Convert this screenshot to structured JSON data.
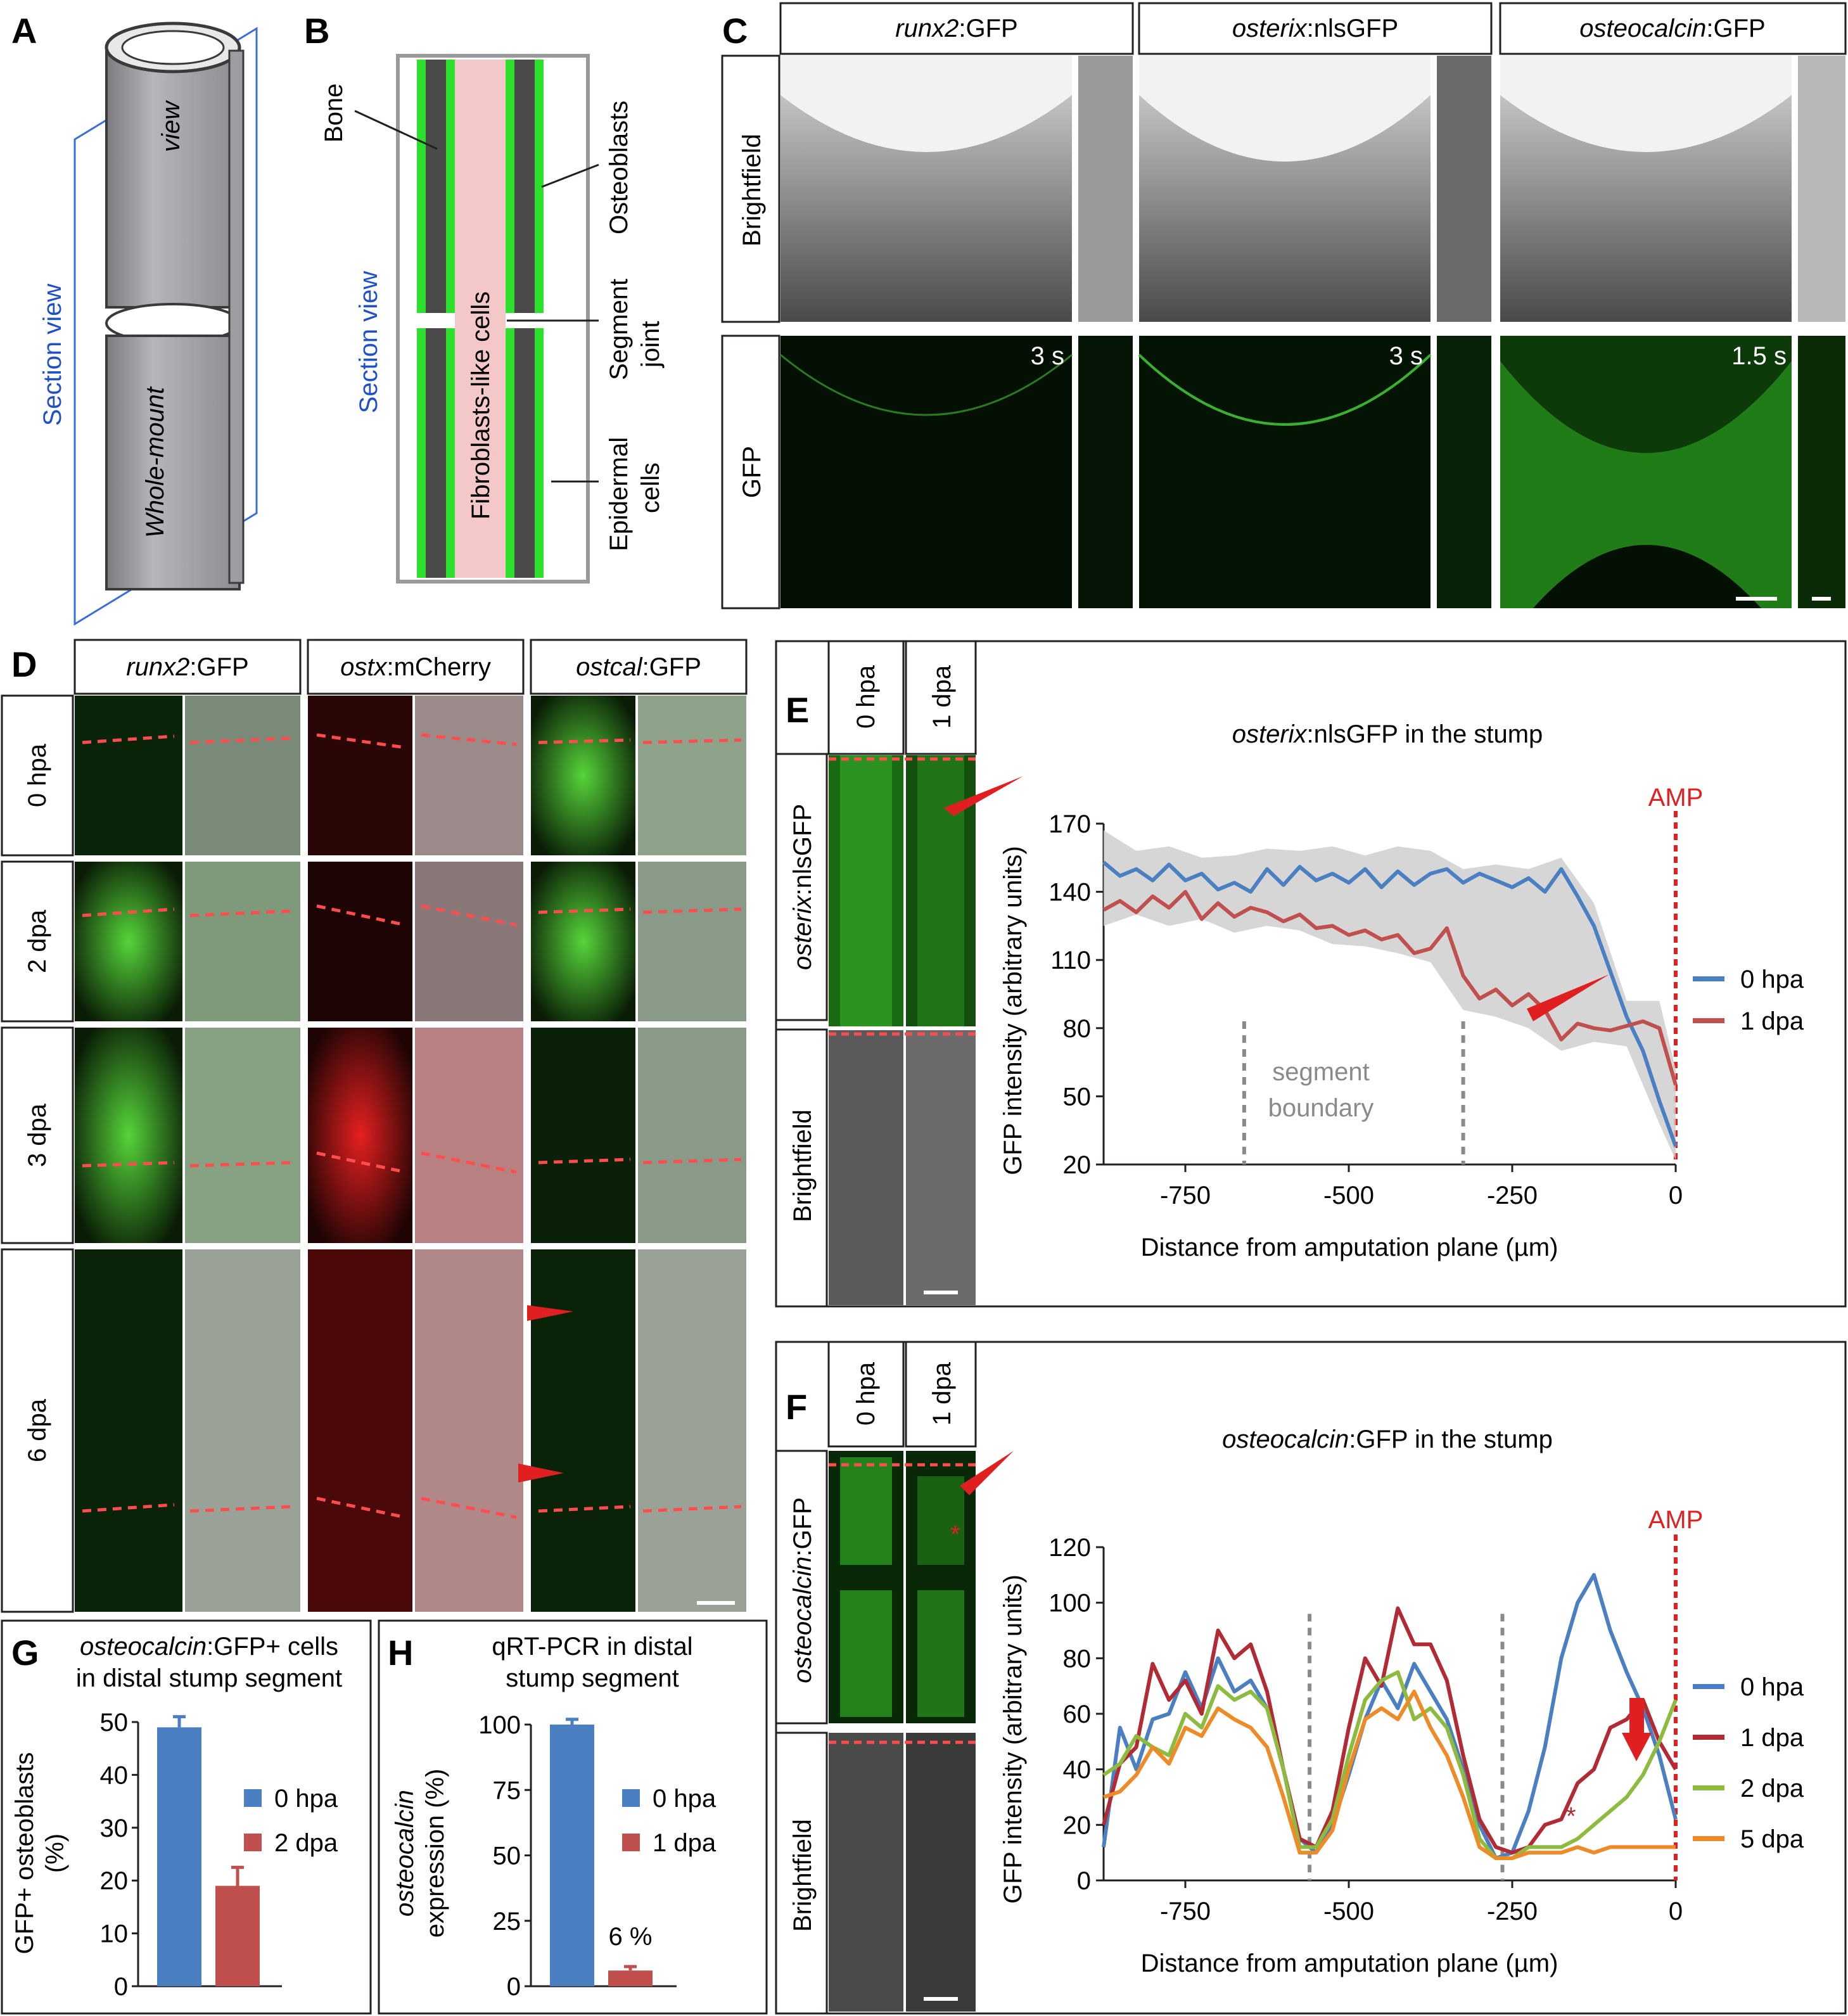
{
  "panels": {
    "A": {
      "label": "A",
      "annotations": {
        "section": "Section view",
        "view": "view",
        "whole": "Whole-mount"
      }
    },
    "B": {
      "label": "B",
      "annotations": {
        "bone": "Bone",
        "osteoblasts": "Osteoblasts",
        "section": "Section view",
        "fibro": "Fibroblasts-like cells",
        "segment1": "Segment",
        "segment2": "joint",
        "epidermal1": "Epidermal",
        "epidermal2": "cells"
      }
    },
    "C": {
      "label": "C",
      "headers": [
        {
          "gene": "runx2",
          "suffix": ":GFP"
        },
        {
          "gene": "osterix",
          "suffix": ":nlsGFP"
        },
        {
          "gene": "osteocalcin",
          "suffix": ":GFP"
        }
      ],
      "rows": [
        "Brightfield",
        "GFP"
      ],
      "exposures": [
        "3 s",
        "3 s",
        "1.5 s"
      ]
    },
    "D": {
      "label": "D",
      "headers": [
        {
          "gene": "runx2",
          "suffix": ":GFP"
        },
        {
          "gene": "ostx",
          "suffix": ":mCherry"
        },
        {
          "gene": "ostcal",
          "suffix": ":GFP"
        }
      ],
      "rows": [
        "0 hpa",
        "2 dpa",
        "3 dpa",
        "6 dpa"
      ]
    },
    "E": {
      "label": "E",
      "col_headers": [
        "0 hpa",
        "1 dpa"
      ],
      "row_labels": [
        "osterix:nlsGFP",
        "Brightfield"
      ],
      "row_gene": "osterix",
      "row_suffix": ":nlsGFP"
    },
    "F": {
      "label": "F",
      "col_headers": [
        "0 hpa",
        "1 dpa"
      ],
      "row_labels": [
        "osteocalcin:GFP",
        "Brightfield"
      ],
      "row_gene": "osteocalcin",
      "row_suffix": ":GFP",
      "asterisk": "*"
    },
    "G": {
      "label": "G"
    },
    "H": {
      "label": "H"
    }
  },
  "chart_data": [
    {
      "id": "E",
      "type": "line",
      "title_gene": "osterix",
      "title_rest": ":nlsGFP in the stump",
      "xlabel": "Distance from amputation plane (µm)",
      "ylabel": "GFP intensity (arbitrary units)",
      "xlim": [
        -875,
        0
      ],
      "ylim": [
        20,
        170
      ],
      "xticks": [
        -750,
        -500,
        -250,
        0
      ],
      "xtick_labels": [
        "-750",
        "-500",
        "-250",
        "0"
      ],
      "yticks": [
        20,
        50,
        80,
        110,
        140,
        170
      ],
      "amp_label": "AMP",
      "boundary_label": [
        "segment",
        "boundary"
      ],
      "boundaries": [
        -660,
        -325
      ],
      "series": [
        {
          "name": "0 hpa",
          "color": "#4a7fc1",
          "x": [
            -875,
            -850,
            -825,
            -800,
            -775,
            -750,
            -725,
            -700,
            -675,
            -650,
            -625,
            -600,
            -575,
            -550,
            -525,
            -500,
            -475,
            -450,
            -425,
            -400,
            -375,
            -350,
            -325,
            -300,
            -275,
            -250,
            -225,
            -200,
            -175,
            -150,
            -125,
            -100,
            -75,
            -50,
            -25,
            0
          ],
          "y": [
            153,
            147,
            150,
            145,
            152,
            145,
            148,
            141,
            144,
            140,
            150,
            143,
            151,
            145,
            148,
            144,
            150,
            142,
            149,
            143,
            148,
            150,
            144,
            148,
            145,
            142,
            146,
            140,
            150,
            138,
            125,
            105,
            85,
            70,
            48,
            28
          ]
        },
        {
          "name": "1 dpa",
          "color": "#c0504d",
          "x": [
            -875,
            -850,
            -825,
            -800,
            -775,
            -750,
            -725,
            -700,
            -675,
            -650,
            -625,
            -600,
            -575,
            -550,
            -525,
            -500,
            -475,
            -450,
            -425,
            -400,
            -375,
            -350,
            -325,
            -300,
            -275,
            -250,
            -225,
            -200,
            -175,
            -150,
            -125,
            -100,
            -75,
            -50,
            -25,
            0
          ],
          "y": [
            132,
            136,
            131,
            138,
            133,
            140,
            128,
            135,
            129,
            133,
            131,
            127,
            130,
            124,
            125,
            121,
            123,
            119,
            121,
            113,
            115,
            124,
            103,
            93,
            97,
            90,
            95,
            88,
            75,
            82,
            80,
            79,
            81,
            83,
            80,
            55
          ]
        }
      ],
      "band": {
        "x": [
          -875,
          -825,
          -775,
          -725,
          -675,
          -625,
          -575,
          -525,
          -475,
          -425,
          -375,
          -325,
          -275,
          -225,
          -175,
          -125,
          -75,
          -25,
          0
        ],
        "lo": [
          125,
          130,
          125,
          128,
          122,
          125,
          123,
          117,
          116,
          113,
          109,
          88,
          85,
          80,
          70,
          74,
          72,
          38,
          22
        ],
        "hi": [
          167,
          158,
          160,
          155,
          156,
          159,
          158,
          160,
          156,
          160,
          158,
          150,
          152,
          150,
          155,
          135,
          92,
          92,
          62
        ]
      },
      "legend": [
        "0 hpa",
        "1 dpa"
      ]
    },
    {
      "id": "F",
      "type": "line",
      "title_gene": "osteocalcin",
      "title_rest": ":GFP in the stump",
      "xlabel": "Distance from amputation plane (µm)",
      "ylabel": "GFP intensity (arbitrary units)",
      "xlim": [
        -875,
        0
      ],
      "ylim": [
        0,
        120
      ],
      "xticks": [
        -750,
        -500,
        -250,
        0
      ],
      "xtick_labels": [
        "-750",
        "-500",
        "-250",
        "0"
      ],
      "yticks": [
        0,
        20,
        40,
        60,
        80,
        100,
        120
      ],
      "amp_label": "AMP",
      "boundaries": [
        -560,
        -265
      ],
      "series": [
        {
          "name": "0 hpa",
          "color": "#4a7fc1",
          "x": [
            -875,
            -850,
            -825,
            -800,
            -775,
            -750,
            -725,
            -700,
            -675,
            -650,
            -625,
            -600,
            -575,
            -550,
            -525,
            -500,
            -475,
            -450,
            -425,
            -400,
            -375,
            -350,
            -325,
            -300,
            -275,
            -250,
            -225,
            -200,
            -175,
            -150,
            -125,
            -100,
            -75,
            -50,
            -25,
            0
          ],
          "y": [
            12,
            55,
            40,
            58,
            60,
            75,
            62,
            80,
            68,
            72,
            62,
            40,
            15,
            10,
            20,
            38,
            58,
            72,
            62,
            78,
            68,
            58,
            40,
            20,
            8,
            10,
            25,
            48,
            80,
            100,
            110,
            90,
            75,
            62,
            45,
            22
          ]
        },
        {
          "name": "1 dpa",
          "color": "#b22a33",
          "x": [
            -875,
            -850,
            -825,
            -800,
            -775,
            -750,
            -725,
            -700,
            -675,
            -650,
            -625,
            -600,
            -575,
            -550,
            -525,
            -500,
            -475,
            -450,
            -425,
            -400,
            -375,
            -350,
            -325,
            -300,
            -275,
            -250,
            -225,
            -200,
            -175,
            -150,
            -125,
            -100,
            -75,
            -50,
            -25,
            0
          ],
          "y": [
            20,
            42,
            48,
            78,
            65,
            72,
            60,
            90,
            80,
            85,
            68,
            40,
            15,
            12,
            25,
            55,
            80,
            70,
            98,
            85,
            85,
            72,
            45,
            22,
            12,
            10,
            12,
            20,
            22,
            35,
            40,
            55,
            58,
            65,
            50,
            40
          ]
        },
        {
          "name": "2 dpa",
          "color": "#8dbb3f",
          "x": [
            -875,
            -850,
            -825,
            -800,
            -775,
            -750,
            -725,
            -700,
            -675,
            -650,
            -625,
            -600,
            -575,
            -550,
            -525,
            -500,
            -475,
            -450,
            -425,
            -400,
            -375,
            -350,
            -325,
            -300,
            -275,
            -250,
            -225,
            -200,
            -175,
            -150,
            -125,
            -100,
            -75,
            -50,
            -25,
            0
          ],
          "y": [
            38,
            42,
            52,
            48,
            45,
            60,
            55,
            70,
            65,
            68,
            62,
            40,
            12,
            12,
            22,
            45,
            65,
            72,
            75,
            58,
            62,
            55,
            38,
            15,
            8,
            8,
            12,
            12,
            12,
            15,
            20,
            25,
            30,
            38,
            50,
            65
          ]
        },
        {
          "name": "5 dpa",
          "color": "#ee8b26",
          "x": [
            -875,
            -850,
            -825,
            -800,
            -775,
            -750,
            -725,
            -700,
            -675,
            -650,
            -625,
            -600,
            -575,
            -550,
            -525,
            -500,
            -475,
            -450,
            -425,
            -400,
            -375,
            -350,
            -325,
            -300,
            -275,
            -250,
            -225,
            -200,
            -175,
            -150,
            -125,
            -100,
            -75,
            -50,
            -25,
            0
          ],
          "y": [
            30,
            32,
            38,
            48,
            42,
            55,
            52,
            62,
            58,
            55,
            48,
            30,
            10,
            10,
            18,
            40,
            58,
            62,
            58,
            68,
            55,
            45,
            30,
            12,
            8,
            8,
            10,
            10,
            10,
            12,
            10,
            12,
            12,
            12,
            12,
            12
          ]
        }
      ],
      "legend": [
        "0 hpa",
        "1 dpa",
        "2 dpa",
        "5 dpa"
      ]
    },
    {
      "id": "G",
      "type": "bar",
      "title": [
        "osteocalcin:GFP+ cells",
        "in distal stump segment"
      ],
      "title_gene": "osteocalcin",
      "ylabel": [
        "GFP+ osteoblasts",
        "(%)"
      ],
      "ylim": [
        0,
        50
      ],
      "yticks": [
        0,
        10,
        20,
        30,
        40,
        50
      ],
      "categories": [
        "0 hpa",
        "2 dpa"
      ],
      "values": [
        49,
        19
      ],
      "errors": [
        2,
        3.5
      ],
      "colors": [
        "#4a7fc1",
        "#c0504d"
      ]
    },
    {
      "id": "H",
      "type": "bar",
      "title": [
        "qRT-PCR in distal",
        "stump segment"
      ],
      "ylabel": [
        "osteocalcin",
        "expression (%)"
      ],
      "ylim": [
        0,
        100
      ],
      "yticks": [
        0,
        25,
        50,
        75,
        100
      ],
      "categories": [
        "0 hpa",
        "1 dpa"
      ],
      "values": [
        100,
        6
      ],
      "errors": [
        2,
        1.5
      ],
      "colors": [
        "#4a7fc1",
        "#c0504d"
      ],
      "annotation": "6 %"
    }
  ]
}
